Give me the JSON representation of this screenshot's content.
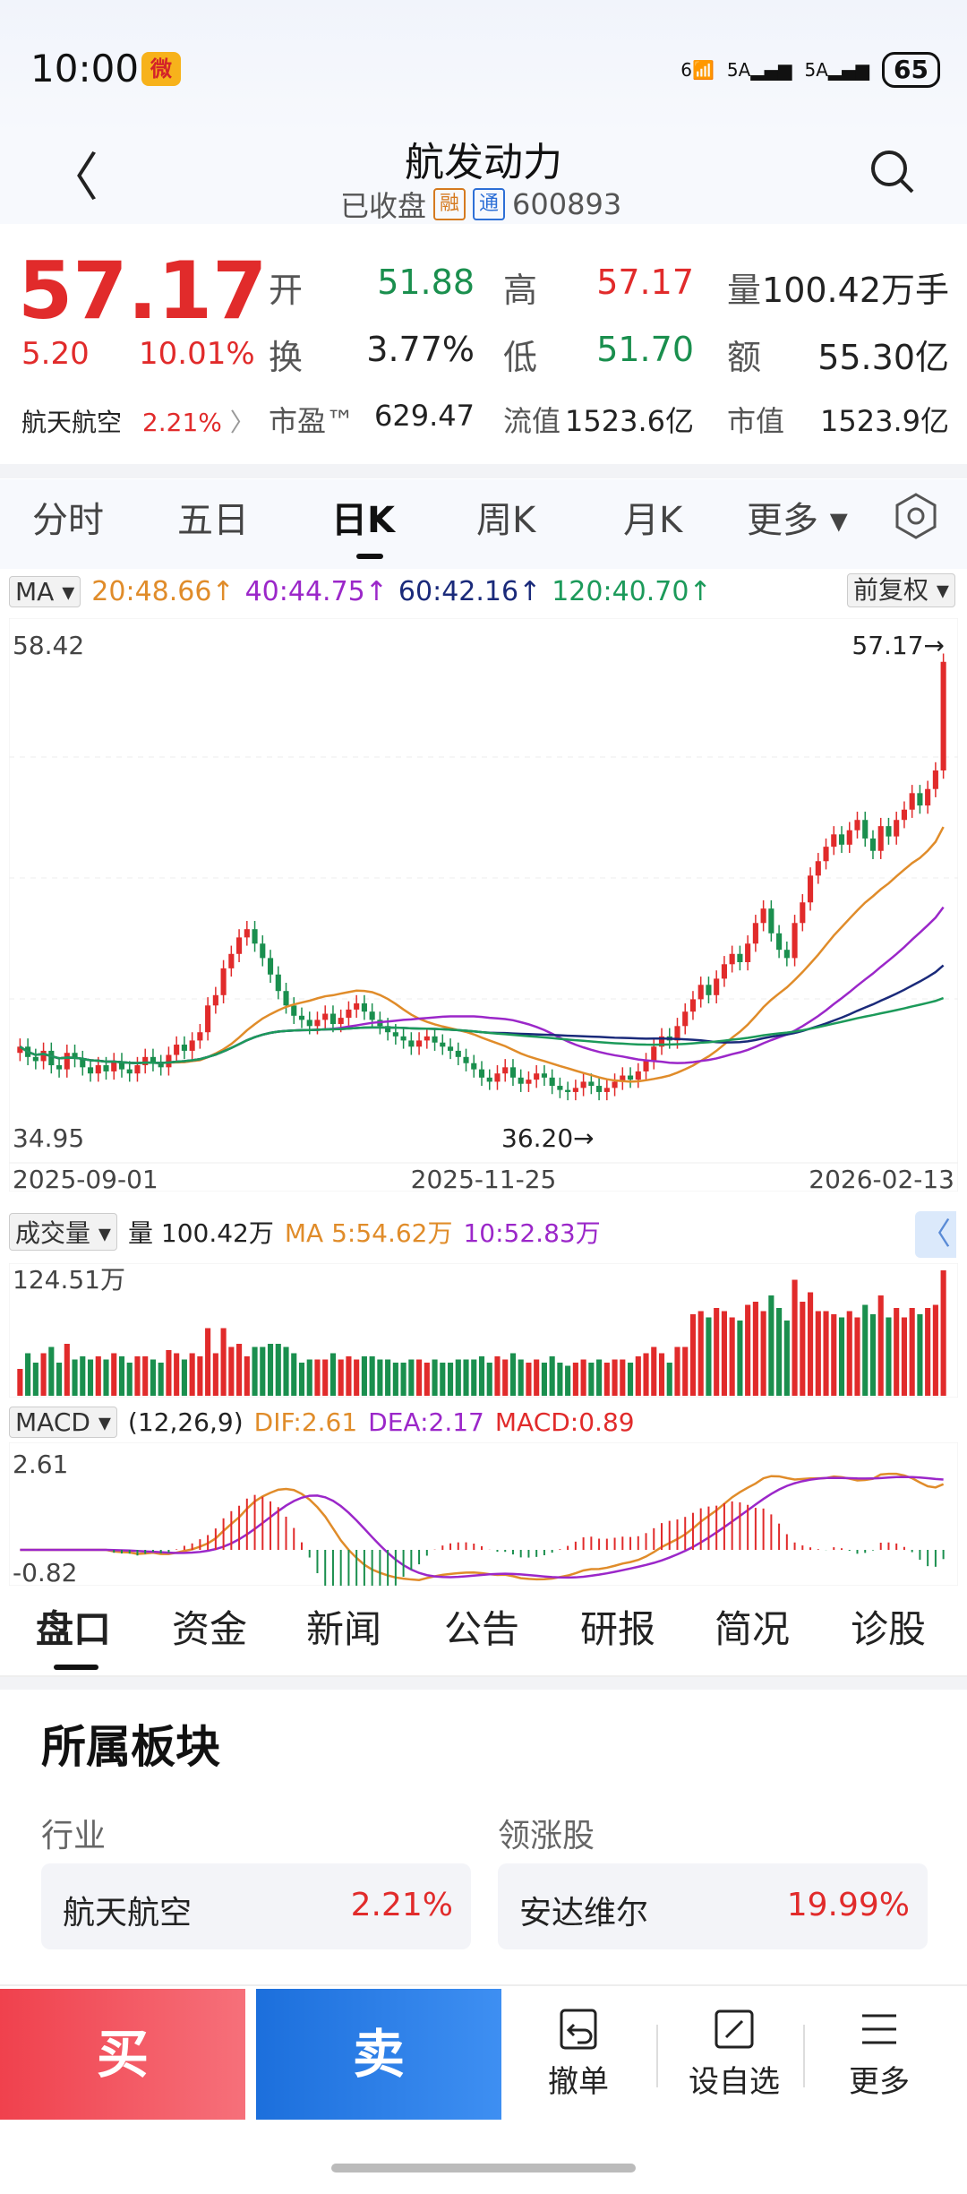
{
  "status": {
    "time": "10:00",
    "battery": "65",
    "net1": "6",
    "net2": "5A",
    "net3": "5A"
  },
  "header": {
    "title": "航发动力",
    "status": "已收盘",
    "tag1": "融",
    "tag2": "通",
    "code": "600893"
  },
  "quote": {
    "price": "57.17",
    "change": "5.20",
    "change_pct": "10.01%",
    "industry": "航天航空",
    "industry_pct": "2.21%",
    "rows": [
      [
        {
          "l": "开",
          "v": "51.88",
          "c": "green"
        },
        {
          "l": "高",
          "v": "57.17",
          "c": "red"
        },
        {
          "l": "量",
          "v": "100.42万手",
          "c": "dark"
        }
      ],
      [
        {
          "l": "换",
          "v": "3.77%",
          "c": "dark"
        },
        {
          "l": "低",
          "v": "51.70",
          "c": "green"
        },
        {
          "l": "额",
          "v": "55.30亿",
          "c": "dark"
        }
      ],
      [
        {
          "l": "市盈™",
          "v": "629.47",
          "c": "dark"
        },
        {
          "l": "流值",
          "v": "1523.6亿",
          "c": "dark"
        },
        {
          "l": "市值",
          "v": "1523.9亿",
          "c": "dark"
        }
      ]
    ]
  },
  "tabs": [
    "分时",
    "五日",
    "日K",
    "周K",
    "月K",
    "更多"
  ],
  "chart_data": {
    "type": "candlestick",
    "ma_label": "MA",
    "ma": {
      "ma20": "20:48.66↑",
      "ma40": "40:44.75↑",
      "ma60": "60:42.16↑",
      "ma120": "120:40.70↑"
    },
    "adjust": "前复权",
    "ymax_label": "58.42",
    "ymin_label": "34.95",
    "high_label": "57.17→",
    "low_label": "36.20→",
    "dates": [
      "2025-09-01",
      "2025-11-25",
      "2026-02-13"
    ],
    "ylim": [
      34.95,
      58.42
    ],
    "closes": [
      38.5,
      38.0,
      37.8,
      38.3,
      37.6,
      37.4,
      38.2,
      37.9,
      37.5,
      37.2,
      37.6,
      37.3,
      37.8,
      37.4,
      37.2,
      37.6,
      38.0,
      37.7,
      37.5,
      38.1,
      38.6,
      38.3,
      38.8,
      39.2,
      40.5,
      41.0,
      42.3,
      43.0,
      43.8,
      44.2,
      43.5,
      42.8,
      42.0,
      41.2,
      40.5,
      40.0,
      39.8,
      39.5,
      39.8,
      40.1,
      39.6,
      39.9,
      40.3,
      40.6,
      40.2,
      39.8,
      39.5,
      39.2,
      39.0,
      38.8,
      38.5,
      38.8,
      39.0,
      38.7,
      38.5,
      38.3,
      38.0,
      37.7,
      37.4,
      37.0,
      36.8,
      37.2,
      37.5,
      37.0,
      36.7,
      36.9,
      37.2,
      37.0,
      36.6,
      36.4,
      36.3,
      36.5,
      36.8,
      36.6,
      36.3,
      36.5,
      36.8,
      37.1,
      36.9,
      37.3,
      37.8,
      38.5,
      39.0,
      38.8,
      39.5,
      40.2,
      40.8,
      41.5,
      41.0,
      41.8,
      42.5,
      43.0,
      42.6,
      43.5,
      44.5,
      45.2,
      44.0,
      43.2,
      42.8,
      44.5,
      45.5,
      46.8,
      47.5,
      48.2,
      48.8,
      48.3,
      49.0,
      49.5,
      48.6,
      48.0,
      49.2,
      48.7,
      49.5,
      50.0,
      50.8,
      50.2,
      51.0,
      51.9,
      57.17
    ],
    "volume": {
      "label": "成交量",
      "vol": "量 100.42万",
      "ma5": "MA 5:54.62万",
      "ma10": "10:52.83万",
      "max": "124.51万"
    },
    "macd": {
      "label": "MACD",
      "params": "(12,26,9)",
      "dif": "DIF:2.61",
      "dea": "DEA:2.17",
      "macd": "MACD:0.89",
      "max": "2.61",
      "min": "-0.82"
    }
  },
  "content_tabs": [
    "盘口",
    "资金",
    "新闻",
    "公告",
    "研报",
    "简况",
    "诊股"
  ],
  "section": {
    "title": "所属板块",
    "industry_head": "行业",
    "leader_head": "领涨股",
    "industry": "航天航空",
    "industry_pct": "2.21%",
    "leader": "安达维尔",
    "leader_pct": "19.99%"
  },
  "actions": {
    "buy": "买",
    "sell": "卖",
    "cancel": "撤单",
    "watch": "设自选",
    "more": "更多"
  }
}
